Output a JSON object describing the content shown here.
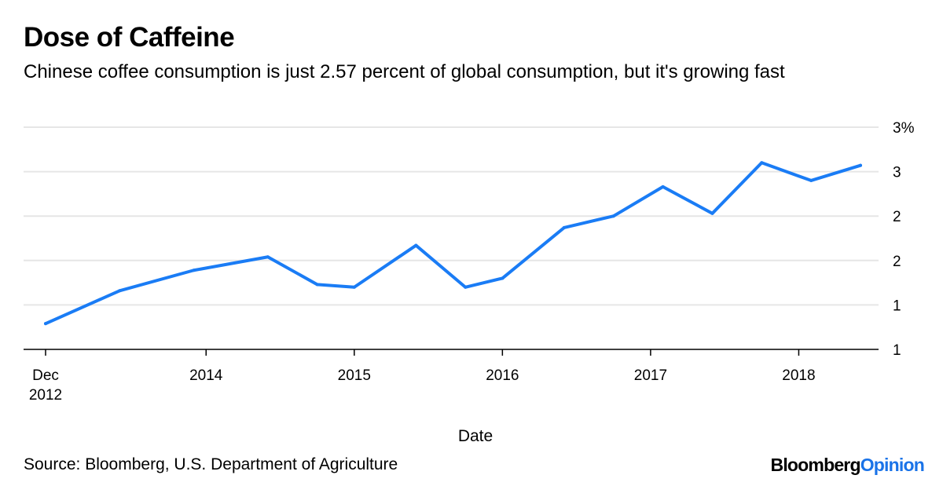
{
  "header": {
    "title": "Dose of Caffeine",
    "subtitle": "Chinese coffee consumption is just 2.57 percent of global consumption, but it's growing fast"
  },
  "footer": {
    "source": "Source: Bloomberg, U.S. Department of Agriculture",
    "brand_part1": "Bloomberg",
    "brand_part2": "Opinion"
  },
  "colors": {
    "line": "#1a7cf5",
    "grid": "#e6e6e6",
    "axis": "#000000"
  },
  "chart_data": {
    "type": "line",
    "title": "Dose of Caffeine",
    "subtitle": "Chinese coffee consumption is just 2.57 percent of global consumption, but it's growing fast",
    "xlabel": "Date",
    "ylabel": "",
    "x_tick_labels": [
      {
        "x": "2012-12",
        "label": [
          "Dec",
          "2012"
        ]
      },
      {
        "x": "2014-01",
        "label": [
          "2014"
        ]
      },
      {
        "x": "2015-01",
        "label": [
          "2015"
        ]
      },
      {
        "x": "2016-01",
        "label": [
          "2016"
        ]
      },
      {
        "x": "2017-01",
        "label": [
          "2017"
        ]
      },
      {
        "x": "2018-01",
        "label": [
          "2018"
        ]
      }
    ],
    "y_tick_labels": [
      {
        "y": 0.5,
        "label": "1"
      },
      {
        "y": 1.0,
        "label": "1"
      },
      {
        "y": 1.5,
        "label": "2"
      },
      {
        "y": 2.0,
        "label": "2"
      },
      {
        "y": 2.5,
        "label": "3"
      },
      {
        "y": 3.0,
        "label": "3%"
      }
    ],
    "ylim": [
      0.5,
      3.0
    ],
    "grid": true,
    "legend": "none",
    "series": [
      {
        "x": [
          "2012-12",
          "2013-06",
          "2013-12",
          "2014-06",
          "2014-10",
          "2015-01",
          "2015-06",
          "2015-10",
          "2016-01",
          "2016-06",
          "2016-10",
          "2017-02",
          "2017-06",
          "2017-10",
          "2018-02",
          "2018-06"
        ],
        "values": [
          0.79,
          1.16,
          1.39,
          1.54,
          1.23,
          1.2,
          1.67,
          1.2,
          1.3,
          1.87,
          2.0,
          2.33,
          2.03,
          2.6,
          2.4,
          2.57
        ]
      }
    ]
  }
}
